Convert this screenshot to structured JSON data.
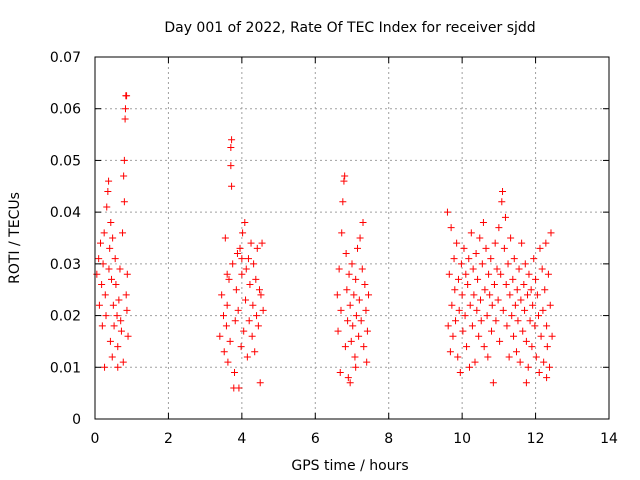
{
  "chart_data": {
    "type": "scatter",
    "title": "Day 001 of 2022, Rate Of TEC Index for receiver sjdd",
    "xlabel": "GPS time / hours",
    "ylabel": "ROTI / TECUs",
    "xlim": [
      0,
      14
    ],
    "ylim": [
      0,
      0.07
    ],
    "x_ticks": [
      "0",
      "2",
      "4",
      "6",
      "8",
      "10",
      "12",
      "14"
    ],
    "y_ticks": [
      "0",
      "0.01",
      "0.02",
      "0.03",
      "0.04",
      "0.05",
      "0.06",
      "0.07"
    ],
    "grid": true,
    "marker": "+",
    "color": "#ff0000",
    "series": [
      {
        "name": "ROTI",
        "points": [
          [
            0.05,
            0.028
          ],
          [
            0.1,
            0.031
          ],
          [
            0.12,
            0.022
          ],
          [
            0.15,
            0.034
          ],
          [
            0.18,
            0.026
          ],
          [
            0.2,
            0.018
          ],
          [
            0.22,
            0.03
          ],
          [
            0.25,
            0.036
          ],
          [
            0.28,
            0.024
          ],
          [
            0.3,
            0.02
          ],
          [
            0.32,
            0.041
          ],
          [
            0.35,
            0.044
          ],
          [
            0.37,
            0.046
          ],
          [
            0.38,
            0.029
          ],
          [
            0.4,
            0.033
          ],
          [
            0.42,
            0.015
          ],
          [
            0.43,
            0.038
          ],
          [
            0.45,
            0.027
          ],
          [
            0.47,
            0.012
          ],
          [
            0.48,
            0.035
          ],
          [
            0.5,
            0.022
          ],
          [
            0.52,
            0.018
          ],
          [
            0.55,
            0.031
          ],
          [
            0.57,
            0.026
          ],
          [
            0.6,
            0.02
          ],
          [
            0.62,
            0.014
          ],
          [
            0.65,
            0.023
          ],
          [
            0.68,
            0.029
          ],
          [
            0.7,
            0.019
          ],
          [
            0.72,
            0.017
          ],
          [
            0.75,
            0.036
          ],
          [
            0.77,
            0.011
          ],
          [
            0.78,
            0.047
          ],
          [
            0.8,
            0.042
          ],
          [
            0.8,
            0.05
          ],
          [
            0.82,
            0.058
          ],
          [
            0.83,
            0.06
          ],
          [
            0.84,
            0.0625
          ],
          [
            0.86,
            0.0625
          ],
          [
            0.85,
            0.024
          ],
          [
            0.87,
            0.021
          ],
          [
            0.88,
            0.028
          ],
          [
            0.9,
            0.016
          ],
          [
            0.26,
            0.01
          ],
          [
            0.62,
            0.01
          ],
          [
            3.4,
            0.016
          ],
          [
            3.45,
            0.024
          ],
          [
            3.5,
            0.02
          ],
          [
            3.52,
            0.013
          ],
          [
            3.55,
            0.035
          ],
          [
            3.58,
            0.018
          ],
          [
            3.6,
            0.022
          ],
          [
            3.62,
            0.011
          ],
          [
            3.65,
            0.027
          ],
          [
            3.68,
            0.015
          ],
          [
            3.7,
            0.0525
          ],
          [
            3.7,
            0.049
          ],
          [
            3.72,
            0.045
          ],
          [
            3.72,
            0.054
          ],
          [
            3.75,
            0.03
          ],
          [
            3.78,
            0.006
          ],
          [
            3.8,
            0.009
          ],
          [
            3.82,
            0.019
          ],
          [
            3.85,
            0.025
          ],
          [
            3.88,
            0.032
          ],
          [
            3.9,
            0.021
          ],
          [
            3.92,
            0.006
          ],
          [
            3.95,
            0.033
          ],
          [
            3.98,
            0.014
          ],
          [
            4.0,
            0.028
          ],
          [
            4.02,
            0.036
          ],
          [
            4.05,
            0.017
          ],
          [
            4.08,
            0.038
          ],
          [
            4.1,
            0.023
          ],
          [
            4.12,
            0.029
          ],
          [
            4.15,
            0.012
          ],
          [
            4.18,
            0.031
          ],
          [
            4.2,
            0.019
          ],
          [
            4.22,
            0.026
          ],
          [
            4.25,
            0.034
          ],
          [
            4.28,
            0.016
          ],
          [
            4.3,
            0.022
          ],
          [
            4.32,
            0.03
          ],
          [
            4.35,
            0.013
          ],
          [
            4.38,
            0.027
          ],
          [
            4.4,
            0.02
          ],
          [
            4.42,
            0.033
          ],
          [
            4.45,
            0.018
          ],
          [
            4.48,
            0.025
          ],
          [
            4.5,
            0.007
          ],
          [
            4.52,
            0.024
          ],
          [
            4.55,
            0.034
          ],
          [
            4.58,
            0.021
          ],
          [
            4.0,
            0.031
          ],
          [
            3.6,
            0.028
          ],
          [
            6.6,
            0.024
          ],
          [
            6.62,
            0.017
          ],
          [
            6.65,
            0.029
          ],
          [
            6.68,
            0.009
          ],
          [
            6.7,
            0.021
          ],
          [
            6.72,
            0.036
          ],
          [
            6.75,
            0.042
          ],
          [
            6.78,
            0.046
          ],
          [
            6.8,
            0.047
          ],
          [
            6.82,
            0.014
          ],
          [
            6.84,
            0.032
          ],
          [
            6.86,
            0.025
          ],
          [
            6.88,
            0.019
          ],
          [
            6.9,
            0.008
          ],
          [
            6.92,
            0.028
          ],
          [
            6.95,
            0.022
          ],
          [
            6.98,
            0.015
          ],
          [
            7.0,
            0.03
          ],
          [
            7.02,
            0.018
          ],
          [
            7.05,
            0.024
          ],
          [
            7.08,
            0.012
          ],
          [
            7.1,
            0.027
          ],
          [
            7.12,
            0.02
          ],
          [
            7.15,
            0.033
          ],
          [
            7.18,
            0.016
          ],
          [
            7.2,
            0.023
          ],
          [
            7.22,
            0.035
          ],
          [
            7.25,
            0.019
          ],
          [
            7.28,
            0.029
          ],
          [
            7.3,
            0.038
          ],
          [
            7.32,
            0.014
          ],
          [
            7.35,
            0.026
          ],
          [
            7.38,
            0.021
          ],
          [
            7.4,
            0.011
          ],
          [
            7.42,
            0.017
          ],
          [
            7.45,
            0.024
          ],
          [
            6.95,
            0.007
          ],
          [
            7.1,
            0.01
          ],
          [
            9.6,
            0.04
          ],
          [
            9.62,
            0.018
          ],
          [
            9.65,
            0.028
          ],
          [
            9.68,
            0.013
          ],
          [
            9.7,
            0.037
          ],
          [
            9.72,
            0.022
          ],
          [
            9.75,
            0.016
          ],
          [
            9.78,
            0.031
          ],
          [
            9.8,
            0.025
          ],
          [
            9.82,
            0.019
          ],
          [
            9.85,
            0.034
          ],
          [
            9.88,
            0.012
          ],
          [
            9.9,
            0.027
          ],
          [
            9.92,
            0.021
          ],
          [
            9.95,
            0.009
          ],
          [
            9.98,
            0.03
          ],
          [
            10.0,
            0.024
          ],
          [
            10.02,
            0.017
          ],
          [
            10.05,
            0.033
          ],
          [
            10.08,
            0.02
          ],
          [
            10.1,
            0.028
          ],
          [
            10.12,
            0.014
          ],
          [
            10.15,
            0.026
          ],
          [
            10.18,
            0.031
          ],
          [
            10.2,
            0.01
          ],
          [
            10.22,
            0.022
          ],
          [
            10.25,
            0.036
          ],
          [
            10.28,
            0.018
          ],
          [
            10.3,
            0.029
          ],
          [
            10.32,
            0.024
          ],
          [
            10.35,
            0.011
          ],
          [
            10.38,
            0.032
          ],
          [
            10.4,
            0.021
          ],
          [
            10.42,
            0.027
          ],
          [
            10.45,
            0.016
          ],
          [
            10.48,
            0.035
          ],
          [
            10.5,
            0.023
          ],
          [
            10.52,
            0.019
          ],
          [
            10.55,
            0.03
          ],
          [
            10.58,
            0.038
          ],
          [
            10.6,
            0.014
          ],
          [
            10.62,
            0.025
          ],
          [
            10.65,
            0.033
          ],
          [
            10.68,
            0.02
          ],
          [
            10.7,
            0.012
          ],
          [
            10.72,
            0.028
          ],
          [
            10.75,
            0.024
          ],
          [
            10.78,
            0.031
          ],
          [
            10.8,
            0.017
          ],
          [
            10.82,
            0.022
          ],
          [
            10.85,
            0.007
          ],
          [
            10.88,
            0.026
          ],
          [
            10.9,
            0.034
          ],
          [
            10.92,
            0.019
          ],
          [
            10.95,
            0.029
          ],
          [
            10.98,
            0.023
          ],
          [
            11.0,
            0.037
          ],
          [
            11.02,
            0.015
          ],
          [
            11.05,
            0.028
          ],
          [
            11.08,
            0.042
          ],
          [
            11.1,
            0.044
          ],
          [
            11.12,
            0.021
          ],
          [
            11.15,
            0.033
          ],
          [
            11.18,
            0.039
          ],
          [
            11.2,
            0.026
          ],
          [
            11.22,
            0.018
          ],
          [
            11.25,
            0.03
          ],
          [
            11.28,
            0.012
          ],
          [
            11.3,
            0.024
          ],
          [
            11.32,
            0.035
          ],
          [
            11.35,
            0.02
          ],
          [
            11.38,
            0.027
          ],
          [
            11.4,
            0.016
          ],
          [
            11.42,
            0.031
          ],
          [
            11.45,
            0.022
          ],
          [
            11.48,
            0.013
          ],
          [
            11.5,
            0.025
          ],
          [
            11.52,
            0.019
          ],
          [
            11.55,
            0.029
          ],
          [
            11.58,
            0.011
          ],
          [
            11.6,
            0.023
          ],
          [
            11.62,
            0.034
          ],
          [
            11.65,
            0.017
          ],
          [
            11.68,
            0.026
          ],
          [
            11.7,
            0.021
          ],
          [
            11.72,
            0.03
          ],
          [
            11.75,
            0.015
          ],
          [
            11.78,
            0.024
          ],
          [
            11.8,
            0.01
          ],
          [
            11.82,
            0.028
          ],
          [
            11.85,
            0.019
          ],
          [
            11.88,
            0.025
          ],
          [
            11.9,
            0.014
          ],
          [
            11.92,
            0.022
          ],
          [
            11.95,
            0.031
          ],
          [
            11.98,
            0.018
          ],
          [
            12.0,
            0.027
          ],
          [
            12.02,
            0.012
          ],
          [
            12.05,
            0.024
          ],
          [
            12.08,
            0.02
          ],
          [
            12.1,
            0.009
          ],
          [
            12.12,
            0.033
          ],
          [
            12.15,
            0.016
          ],
          [
            12.18,
            0.029
          ],
          [
            12.2,
            0.021
          ],
          [
            12.22,
            0.011
          ],
          [
            12.25,
            0.025
          ],
          [
            12.28,
            0.034
          ],
          [
            12.3,
            0.018
          ],
          [
            12.32,
            0.014
          ],
          [
            12.35,
            0.028
          ],
          [
            12.38,
            0.01
          ],
          [
            12.4,
            0.022
          ],
          [
            12.42,
            0.036
          ],
          [
            12.45,
            0.016
          ],
          [
            11.75,
            0.007
          ],
          [
            12.3,
            0.008
          ]
        ]
      }
    ]
  }
}
